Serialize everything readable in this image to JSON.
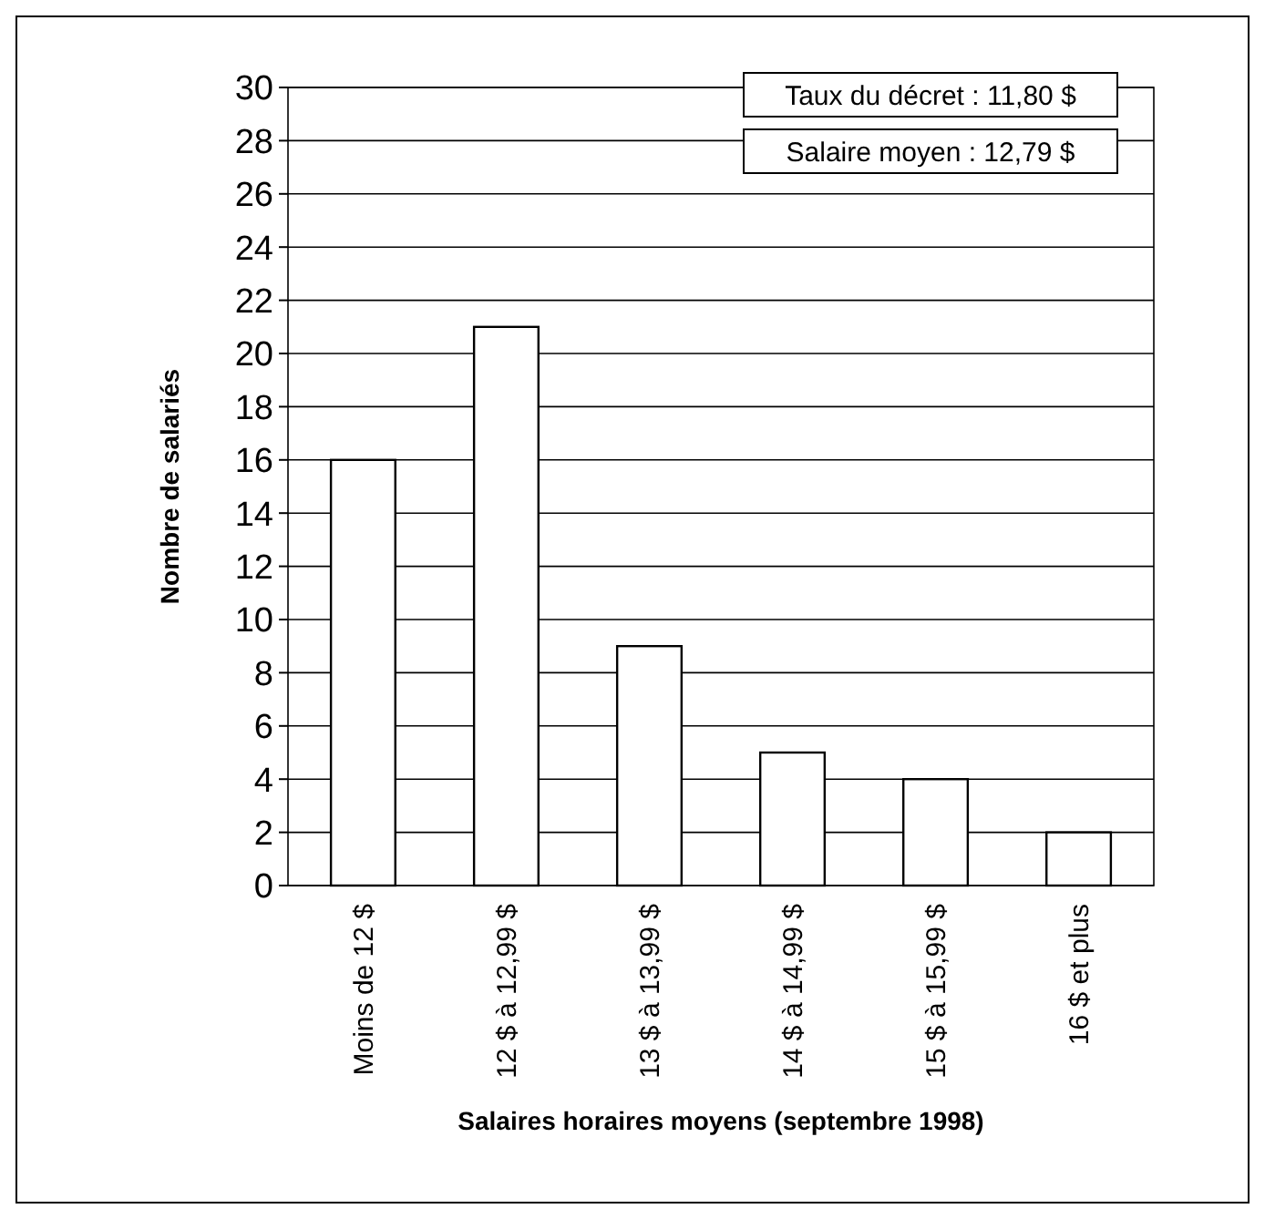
{
  "chart_data": {
    "type": "bar",
    "xlabel": "Salaires horaires moyens (septembre 1998)",
    "ylabel": "Nombre de salariés",
    "categories": [
      "Moins de 12 $",
      "12 $ à 12,99 $",
      "13 $ à 13,99 $",
      "14 $ à 14,99 $",
      "15 $ à 15,99 $",
      "16 $ et plus"
    ],
    "values": [
      16,
      21,
      9,
      5,
      4,
      2
    ],
    "color": "#ffffff",
    "ylim": [
      0,
      30
    ],
    "yticks": [
      0,
      2,
      4,
      6,
      8,
      10,
      12,
      14,
      16,
      18,
      20,
      22,
      24,
      26,
      28,
      30
    ],
    "grid": "y",
    "annotations": [
      "Taux du décret : 11,80 $",
      "Salaire moyen : 12,79 $"
    ]
  }
}
